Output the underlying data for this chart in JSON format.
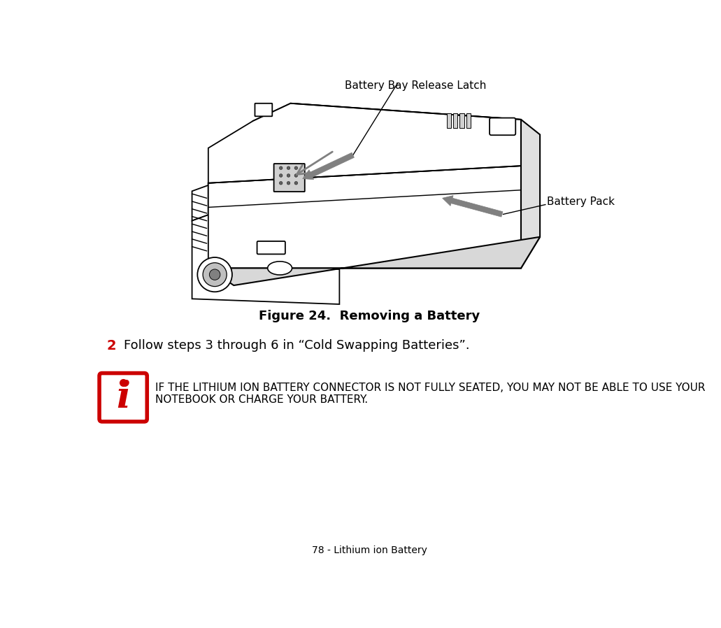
{
  "bg_color": "#ffffff",
  "figure_caption": "Figure 24.  Removing a Battery",
  "step_number": "2",
  "step_number_color": "#cc0000",
  "step_text": "Follow steps 3 through 6 in “Cold Swapping Batteries”.",
  "note_text_line1": "IF THE LITHIUM ION BATTERY CONNECTOR IS NOT FULLY SEATED, YOU MAY NOT BE ABLE TO USE YOUR",
  "note_text_line2": "NOTEBOOK OR CHARGE YOUR BATTERY.",
  "footer_text": "78 - Lithium ion Battery",
  "label_latch": "Battery Bay Release Latch",
  "label_battery": "Battery Pack",
  "icon_color": "#cc0000",
  "icon_border_color": "#cc0000",
  "icon_bg": "#ffffff",
  "arrow_color": "#808080",
  "text_color": "#000000",
  "line_color": "#000000",
  "note_font_size": 11,
  "caption_font_size": 13,
  "step_font_size": 13,
  "footer_font_size": 10,
  "label_font_size": 11
}
